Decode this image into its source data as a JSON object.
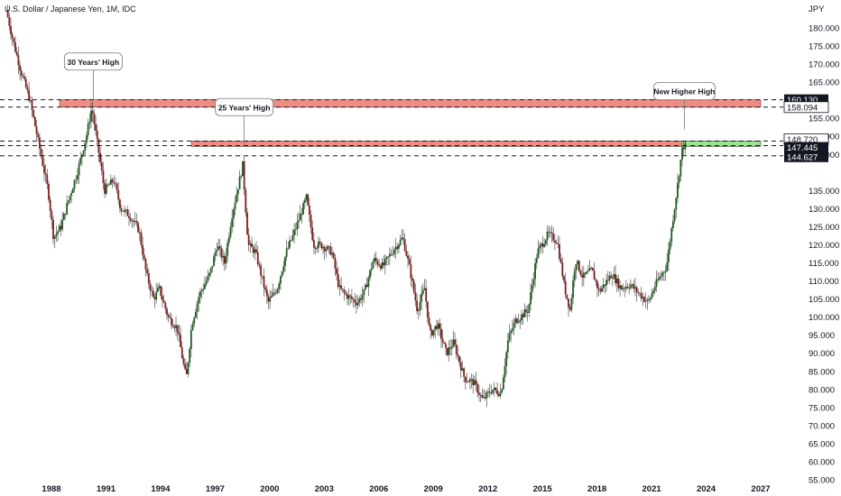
{
  "chart_data": {
    "type": "candlestick",
    "title": "U.S. Dollar / Japanese Yen, 1M, IDC",
    "currency": "JPY",
    "interval": "1M",
    "x_range": [
      1985.5,
      2027.3
    ],
    "ylim": [
      55,
      185
    ],
    "y_ticks": [
      "180.000",
      "175.000",
      "170.000",
      "165.000",
      "155.000",
      "150.000",
      "145.000",
      "135.000",
      "130.000",
      "125.000",
      "120.000",
      "115.000",
      "110.000",
      "105.000",
      "100.000",
      "95.000",
      "90.000",
      "85.000",
      "80.000",
      "75.000",
      "70.000",
      "65.000",
      "60.000",
      "55.000"
    ],
    "y_tick_values": [
      180,
      175,
      170,
      165,
      155,
      150,
      145,
      135,
      130,
      125,
      120,
      115,
      110,
      105,
      100,
      95,
      90,
      85,
      80,
      75,
      70,
      65,
      60,
      55
    ],
    "x_ticks": [
      "1988",
      "1991",
      "1994",
      "1997",
      "2000",
      "2003",
      "2006",
      "2009",
      "2012",
      "2015",
      "2018",
      "2021",
      "2024",
      "2027"
    ],
    "x_tick_values": [
      1988,
      1991,
      1994,
      1997,
      2000,
      2003,
      2006,
      2009,
      2012,
      2015,
      2018,
      2021,
      2024,
      2027
    ],
    "price_levels": [
      {
        "label": "160.130",
        "value": 160.13,
        "style": "dark"
      },
      {
        "label": "158.094",
        "value": 158.094,
        "style": "light"
      },
      {
        "label": "148.720",
        "value": 148.72,
        "style": "light"
      },
      {
        "label": "15d 13h",
        "value": 147.9,
        "style": "countdown"
      },
      {
        "label": "147.445",
        "value": 147.445,
        "style": "dark"
      },
      {
        "label": "144.627",
        "value": 144.627,
        "style": "dark"
      }
    ],
    "zones": [
      {
        "y_top": 160.13,
        "y_bottom": 158.094,
        "x_start": 1988.45,
        "x_end": 2027.0,
        "color": "#f28b82"
      },
      {
        "y_top": 148.72,
        "y_bottom": 147.2,
        "x_start": 1995.7,
        "x_end": 2022.65,
        "color": "#f28b82"
      },
      {
        "y_top": 148.72,
        "y_bottom": 147.2,
        "x_start": 2022.65,
        "x_end": 2027.0,
        "color": "#98e58b"
      }
    ],
    "callouts": [
      {
        "text": "30 Years' High",
        "x": 1990.3,
        "y": 160.1
      },
      {
        "text": "25 Years' High",
        "x": 1998.6,
        "y": 147.5
      },
      {
        "text": "New Higher High",
        "x": 2022.8,
        "y": 151.9
      }
    ],
    "anchors": [
      [
        1985.6,
        185
      ],
      [
        1985.9,
        178
      ],
      [
        1986.4,
        168
      ],
      [
        1986.9,
        160
      ],
      [
        1987.3,
        150
      ],
      [
        1987.9,
        135
      ],
      [
        1988.2,
        122
      ],
      [
        1988.6,
        125
      ],
      [
        1989.0,
        132
      ],
      [
        1989.5,
        140
      ],
      [
        1990.0,
        150
      ],
      [
        1990.3,
        158
      ],
      [
        1990.7,
        145
      ],
      [
        1991.0,
        135
      ],
      [
        1991.5,
        138
      ],
      [
        1991.9,
        130
      ],
      [
        1992.4,
        128
      ],
      [
        1992.9,
        124
      ],
      [
        1993.3,
        112
      ],
      [
        1993.7,
        105
      ],
      [
        1994.0,
        108
      ],
      [
        1994.5,
        100
      ],
      [
        1995.0,
        97
      ],
      [
        1995.3,
        88
      ],
      [
        1995.5,
        83
      ],
      [
        1995.8,
        98
      ],
      [
        1996.2,
        106
      ],
      [
        1996.8,
        112
      ],
      [
        1997.2,
        120
      ],
      [
        1997.6,
        115
      ],
      [
        1998.0,
        128
      ],
      [
        1998.6,
        142
      ],
      [
        1998.9,
        120
      ],
      [
        1999.3,
        118
      ],
      [
        1999.7,
        110
      ],
      [
        2000.0,
        104
      ],
      [
        2000.5,
        108
      ],
      [
        2001.0,
        118
      ],
      [
        2001.4,
        123
      ],
      [
        2001.9,
        130
      ],
      [
        2002.1,
        133
      ],
      [
        2002.5,
        120
      ],
      [
        2002.9,
        120
      ],
      [
        2003.5,
        118
      ],
      [
        2003.9,
        108
      ],
      [
        2004.3,
        106
      ],
      [
        2004.9,
        104
      ],
      [
        2005.3,
        107
      ],
      [
        2005.8,
        116
      ],
      [
        2006.3,
        114
      ],
      [
        2006.8,
        118
      ],
      [
        2007.4,
        122
      ],
      [
        2007.8,
        113
      ],
      [
        2008.2,
        102
      ],
      [
        2008.6,
        108
      ],
      [
        2008.9,
        95
      ],
      [
        2009.3,
        98
      ],
      [
        2009.8,
        90
      ],
      [
        2010.2,
        93
      ],
      [
        2010.8,
        83
      ],
      [
        2011.3,
        82
      ],
      [
        2011.8,
        77
      ],
      [
        2012.3,
        80
      ],
      [
        2012.8,
        79
      ],
      [
        2013.2,
        94
      ],
      [
        2013.6,
        99
      ],
      [
        2014.3,
        102
      ],
      [
        2014.8,
        118
      ],
      [
        2015.4,
        123
      ],
      [
        2015.9,
        121
      ],
      [
        2016.3,
        108
      ],
      [
        2016.6,
        102
      ],
      [
        2016.9,
        116
      ],
      [
        2017.3,
        111
      ],
      [
        2017.8,
        113
      ],
      [
        2018.2,
        107
      ],
      [
        2018.9,
        112
      ],
      [
        2019.4,
        108
      ],
      [
        2019.9,
        109
      ],
      [
        2020.3,
        107
      ],
      [
        2020.9,
        104
      ],
      [
        2021.3,
        109
      ],
      [
        2021.9,
        114
      ],
      [
        2022.2,
        125
      ],
      [
        2022.5,
        136
      ],
      [
        2022.75,
        146
      ],
      [
        2022.85,
        147.3
      ]
    ]
  },
  "colors": {
    "up_candle": "#1b5e20",
    "down_candle": "#7f1d1d",
    "zone_red": "#f28b82",
    "zone_green": "#98e58b",
    "dark_badge": "#131722"
  }
}
